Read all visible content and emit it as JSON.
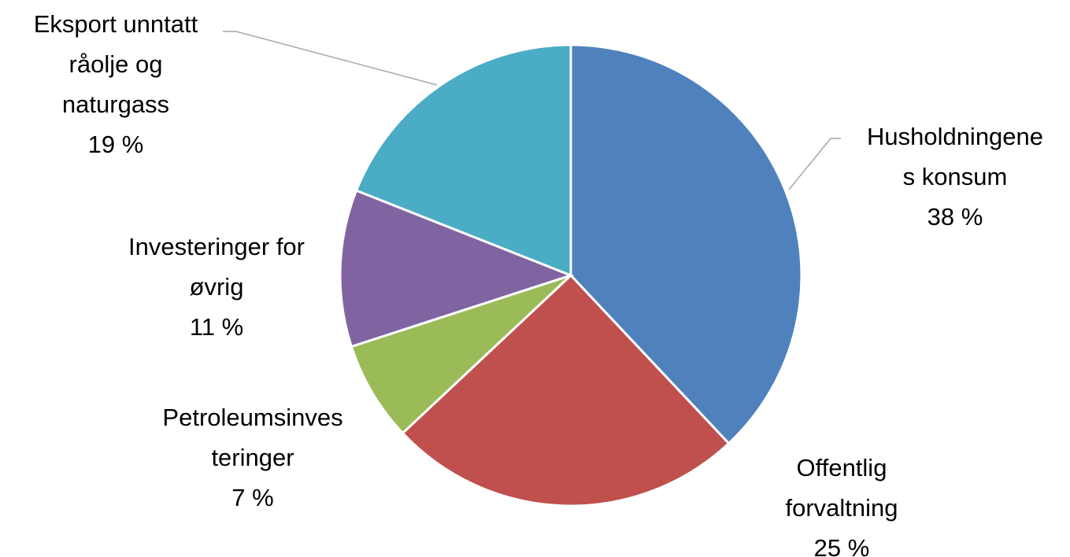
{
  "chart_data": {
    "type": "pie",
    "title": "",
    "start_angle_deg": 0,
    "direction": "clockwise",
    "slices": [
      {
        "name": "Husholdningenes konsum",
        "value": 38,
        "value_label": "38 %",
        "label_lines": [
          "Husholdningene",
          "s konsum"
        ],
        "color": "#4f81bd"
      },
      {
        "name": "Offentlig forvaltning",
        "value": 25,
        "value_label": "25 %",
        "label_lines": [
          "Offentlig",
          "forvaltning"
        ],
        "color": "#c0504d"
      },
      {
        "name": "Petroleumsinvesteringer",
        "value": 7,
        "value_label": "7 %",
        "label_lines": [
          "Petroleumsinves",
          "teringer"
        ],
        "color": "#9bbb59"
      },
      {
        "name": "Investeringer for øvrig",
        "value": 11,
        "value_label": "11 %",
        "label_lines": [
          "Investeringer for",
          "øvrig"
        ],
        "color": "#8064a2"
      },
      {
        "name": "Eksport unntatt råolje og naturgass",
        "value": 19,
        "value_label": "19 %",
        "label_lines": [
          "Eksport unntatt",
          "råolje og",
          "naturgass"
        ],
        "color": "#4bacc6"
      }
    ]
  }
}
